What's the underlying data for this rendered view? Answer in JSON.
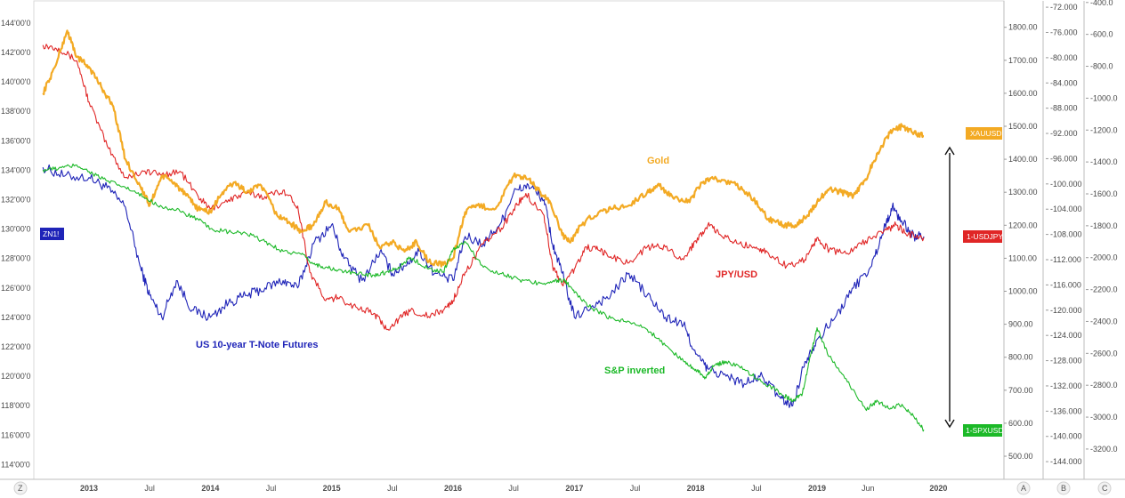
{
  "chart_data": {
    "type": "line",
    "x_ticks": [
      "2013",
      "Jul",
      "2014",
      "Jul",
      "2015",
      "Jul",
      "2016",
      "Jul",
      "2017",
      "Jul",
      "2018",
      "Jul",
      "2019",
      "Jun",
      "2020"
    ],
    "axes": {
      "left": {
        "range": [
          113,
          145.5
        ],
        "ticks": [
          "144'00'0",
          "142'00'0",
          "140'00'0",
          "138'00'0",
          "136'00'0",
          "134'00'0",
          "132'00'0",
          "130'00'0",
          "128'00'0",
          "126'00'0",
          "124'00'0",
          "122'00'0",
          "120'00'0",
          "118'00'0",
          "116'00'0",
          "114'00'0"
        ]
      },
      "gold": {
        "range": [
          430,
          1880
        ],
        "ticks": [
          "1800.00",
          "1700.00",
          "1600.00",
          "1500.00",
          "1400.00",
          "1300.00",
          "1200.00",
          "1100.00",
          "1000.00",
          "900.00",
          "800.00",
          "700.00",
          "600.00",
          "500.00"
        ]
      },
      "usdjpy": {
        "range": [
          -146.8,
          -71.0
        ],
        "ticks": [
          "-72.000",
          "-76.000",
          "-80.000",
          "-84.000",
          "-88.000",
          "-92.000",
          "-96.000",
          "-100.000",
          "-104.000",
          "-108.000",
          "-112.000",
          "-116.000",
          "-120.000",
          "-124.000",
          "-128.000",
          "-132.000",
          "-136.000",
          "-140.000",
          "-144.000"
        ]
      },
      "spx": {
        "range": [
          -3390,
          -390
        ],
        "ticks": [
          "-400.0",
          "-600.0",
          "-800.0",
          "-1000.0",
          "-1200.0",
          "-1400.0",
          "-1600.0",
          "-1800.0",
          "-2000.0",
          "-2200.0",
          "-2400.0",
          "-2600.0",
          "-2800.0",
          "-3000.0",
          "-3200.0"
        ]
      }
    },
    "series": [
      {
        "name": "US 10-year T-Note Futures",
        "axis": "left",
        "color": "#1f24b8",
        "x": [
          2012.62,
          2012.8,
          2013.0,
          2013.15,
          2013.3,
          2013.42,
          2013.5,
          2013.6,
          2013.72,
          2013.85,
          2014.0,
          2014.15,
          2014.3,
          2014.45,
          2014.6,
          2014.72,
          2014.85,
          2015.0,
          2015.1,
          2015.25,
          2015.4,
          2015.5,
          2015.6,
          2015.72,
          2015.85,
          2016.0,
          2016.1,
          2016.25,
          2016.4,
          2016.5,
          2016.62,
          2016.75,
          2016.82,
          2016.9,
          2017.0,
          2017.15,
          2017.3,
          2017.45,
          2017.6,
          2017.75,
          2017.9,
          2018.0,
          2018.1,
          2018.25,
          2018.4,
          2018.55,
          2018.7,
          2018.8,
          2018.9,
          2019.0,
          2019.15,
          2019.3,
          2019.45,
          2019.55,
          2019.62,
          2019.7,
          2019.8,
          2019.88
        ],
        "y": [
          134.2,
          133.6,
          133.5,
          132.8,
          131.5,
          127.5,
          125.5,
          124.0,
          126.5,
          124.5,
          124.0,
          125.0,
          125.5,
          126.0,
          126.5,
          126.0,
          129.0,
          130.3,
          128.0,
          126.5,
          128.5,
          127.0,
          127.5,
          128.5,
          127.0,
          126.5,
          129.5,
          129.0,
          130.5,
          132.5,
          133.0,
          132.0,
          129.0,
          127.0,
          124.0,
          124.8,
          125.5,
          127.0,
          125.5,
          124.0,
          123.5,
          121.5,
          120.5,
          120.0,
          119.5,
          120.0,
          118.5,
          118.0,
          121.0,
          122.5,
          124.0,
          126.0,
          127.5,
          130.0,
          131.5,
          130.5,
          129.5,
          129.5
        ]
      },
      {
        "name": "JPY/USD",
        "axis": "usdjpy",
        "color": "#e02626",
        "x": [
          2012.62,
          2012.75,
          2012.9,
          2013.0,
          2013.15,
          2013.3,
          2013.45,
          2013.6,
          2013.75,
          2013.9,
          2014.0,
          2014.15,
          2014.3,
          2014.45,
          2014.6,
          2014.72,
          2014.82,
          2014.95,
          2015.05,
          2015.2,
          2015.35,
          2015.45,
          2015.55,
          2015.65,
          2015.8,
          2015.92,
          2016.0,
          2016.1,
          2016.25,
          2016.4,
          2016.5,
          2016.6,
          2016.75,
          2016.82,
          2016.9,
          2017.0,
          2017.1,
          2017.2,
          2017.3,
          2017.45,
          2017.6,
          2017.75,
          2017.9,
          2018.0,
          2018.1,
          2018.2,
          2018.35,
          2018.5,
          2018.6,
          2018.75,
          2018.9,
          2019.0,
          2019.1,
          2019.25,
          2019.4,
          2019.55,
          2019.65,
          2019.75,
          2019.88
        ],
        "y": [
          -78.0,
          -78.5,
          -80.5,
          -87.0,
          -94.0,
          -99.0,
          -98.0,
          -98.5,
          -98.0,
          -102.0,
          -104.0,
          -102.5,
          -101.5,
          -102.0,
          -101.0,
          -103.5,
          -114.0,
          -118.5,
          -118.0,
          -119.5,
          -120.5,
          -123.0,
          -121.5,
          -120.0,
          -121.0,
          -120.0,
          -118.5,
          -114.0,
          -109.5,
          -107.0,
          -104.0,
          -101.5,
          -105.0,
          -113.0,
          -116.0,
          -113.5,
          -110.0,
          -110.5,
          -111.5,
          -112.5,
          -110.0,
          -110.0,
          -112.0,
          -109.0,
          -106.5,
          -108.0,
          -109.5,
          -110.0,
          -111.0,
          -113.0,
          -112.0,
          -108.5,
          -110.5,
          -111.0,
          -109.0,
          -107.5,
          -106.5,
          -108.0,
          -108.5
        ]
      },
      {
        "name": "Gold",
        "axis": "gold",
        "color": "#f3aa24",
        "x": [
          2012.62,
          2012.72,
          2012.82,
          2012.9,
          2013.0,
          2013.1,
          2013.2,
          2013.3,
          2013.42,
          2013.5,
          2013.6,
          2013.7,
          2013.8,
          2013.9,
          2014.0,
          2014.1,
          2014.2,
          2014.3,
          2014.42,
          2014.55,
          2014.65,
          2014.75,
          2014.85,
          2014.95,
          2015.05,
          2015.15,
          2015.3,
          2015.4,
          2015.5,
          2015.6,
          2015.7,
          2015.8,
          2015.92,
          2016.0,
          2016.1,
          2016.2,
          2016.35,
          2016.5,
          2016.62,
          2016.72,
          2016.8,
          2016.9,
          2016.97,
          2017.05,
          2017.2,
          2017.3,
          2017.45,
          2017.6,
          2017.7,
          2017.82,
          2017.95,
          2018.05,
          2018.15,
          2018.3,
          2018.45,
          2018.6,
          2018.72,
          2018.82,
          2018.92,
          2019.0,
          2019.1,
          2019.2,
          2019.3,
          2019.4,
          2019.5,
          2019.6,
          2019.7,
          2019.8,
          2019.88
        ],
        "y": [
          1600,
          1680,
          1790,
          1710,
          1680,
          1620,
          1560,
          1400,
          1320,
          1260,
          1350,
          1330,
          1290,
          1250,
          1240,
          1300,
          1330,
          1300,
          1320,
          1230,
          1210,
          1180,
          1200,
          1270,
          1250,
          1180,
          1200,
          1130,
          1150,
          1120,
          1150,
          1090,
          1080,
          1100,
          1240,
          1260,
          1250,
          1350,
          1340,
          1300,
          1270,
          1170,
          1150,
          1200,
          1240,
          1250,
          1260,
          1300,
          1320,
          1280,
          1270,
          1330,
          1340,
          1330,
          1290,
          1220,
          1200,
          1200,
          1230,
          1270,
          1310,
          1300,
          1290,
          1340,
          1420,
          1480,
          1500,
          1480,
          1470
        ]
      },
      {
        "name": "S&P inverted",
        "axis": "spx",
        "color": "#1cb928",
        "x": [
          2012.62,
          2012.75,
          2012.9,
          2013.0,
          2013.15,
          2013.3,
          2013.45,
          2013.6,
          2013.75,
          2013.9,
          2014.0,
          2014.15,
          2014.3,
          2014.45,
          2014.6,
          2014.75,
          2014.85,
          2014.95,
          2015.05,
          2015.2,
          2015.35,
          2015.45,
          2015.55,
          2015.65,
          2015.8,
          2015.92,
          2016.0,
          2016.1,
          2016.25,
          2016.4,
          2016.55,
          2016.7,
          2016.82,
          2016.92,
          2017.0,
          2017.15,
          2017.3,
          2017.45,
          2017.6,
          2017.75,
          2017.9,
          2018.0,
          2018.08,
          2018.15,
          2018.25,
          2018.4,
          2018.55,
          2018.7,
          2018.8,
          2018.88,
          2018.95,
          2019.0,
          2019.1,
          2019.25,
          2019.4,
          2019.5,
          2019.6,
          2019.7,
          2019.8,
          2019.88
        ],
        "y": [
          -1450,
          -1440,
          -1420,
          -1460,
          -1520,
          -1560,
          -1620,
          -1680,
          -1710,
          -1760,
          -1820,
          -1840,
          -1850,
          -1900,
          -1960,
          -1980,
          -2040,
          -2060,
          -2080,
          -2100,
          -2110,
          -2090,
          -2060,
          -2000,
          -2070,
          -2090,
          -1950,
          -1900,
          -2060,
          -2100,
          -2140,
          -2160,
          -2150,
          -2140,
          -2220,
          -2320,
          -2380,
          -2400,
          -2450,
          -2550,
          -2650,
          -2700,
          -2750,
          -2680,
          -2650,
          -2700,
          -2780,
          -2850,
          -2900,
          -2850,
          -2600,
          -2440,
          -2620,
          -2780,
          -2950,
          -2900,
          -2950,
          -2920,
          -3000,
          -3080
        ]
      }
    ],
    "series_labels": [
      "US 10-year T-Note Futures",
      "JPY/USD",
      "Gold",
      "S&P inverted"
    ],
    "badges": [
      "ZN1!",
      "XAUUSD",
      "1-USDJPY",
      "1-SPXUSD"
    ],
    "corner_labels": [
      "Z",
      "A",
      "B",
      "C"
    ],
    "legend": "inline",
    "grid": false
  }
}
